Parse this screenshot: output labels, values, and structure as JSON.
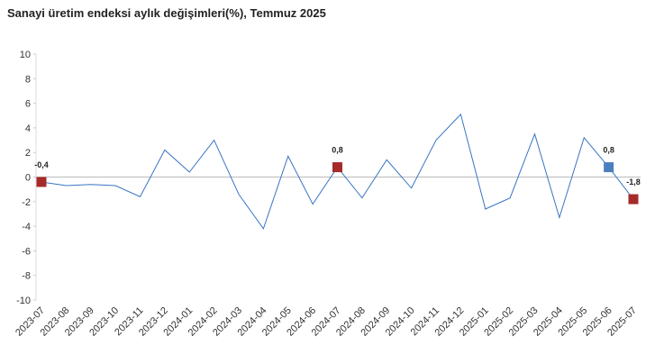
{
  "chart_data": {
    "type": "line",
    "title": "Sanayi üretim endeksi aylık değişimleri(%), Temmuz 2025",
    "categories": [
      "2023-07",
      "2023-08",
      "2023-09",
      "2023-10",
      "2023-11",
      "2023-12",
      "2024-01",
      "2024-02",
      "2024-03",
      "2024-04",
      "2024-05",
      "2024-06",
      "2024-07",
      "2024-08",
      "2024-09",
      "2024-10",
      "2024-11",
      "2024-12",
      "2025-01",
      "2025-02",
      "2025-03",
      "2025-04",
      "2025-05",
      "2025-06",
      "2025-07"
    ],
    "values": [
      -0.4,
      -0.7,
      -0.6,
      -0.7,
      -1.6,
      2.2,
      0.4,
      3.0,
      -1.4,
      -4.2,
      1.7,
      -2.2,
      0.8,
      -1.7,
      1.4,
      -0.9,
      3.0,
      5.1,
      -2.6,
      -1.7,
      3.5,
      -3.3,
      3.2,
      0.8,
      -1.8
    ],
    "value_labels": [
      "-0,4",
      null,
      null,
      null,
      null,
      null,
      null,
      null,
      null,
      null,
      null,
      null,
      "0,8",
      null,
      null,
      null,
      null,
      null,
      null,
      null,
      null,
      null,
      null,
      "0,8",
      "-1,8"
    ],
    "marker_colors": [
      "#a52a2a",
      null,
      null,
      null,
      null,
      null,
      null,
      null,
      null,
      null,
      null,
      null,
      "#a52a2a",
      null,
      null,
      null,
      null,
      null,
      null,
      null,
      null,
      null,
      null,
      "#4a7fbf",
      "#a52a2a"
    ],
    "color": "#3a75c4",
    "ylim": [
      -10,
      10
    ],
    "yticks": [
      -10,
      -8,
      -6,
      -4,
      -2,
      0,
      2,
      4,
      6,
      8,
      10
    ]
  }
}
